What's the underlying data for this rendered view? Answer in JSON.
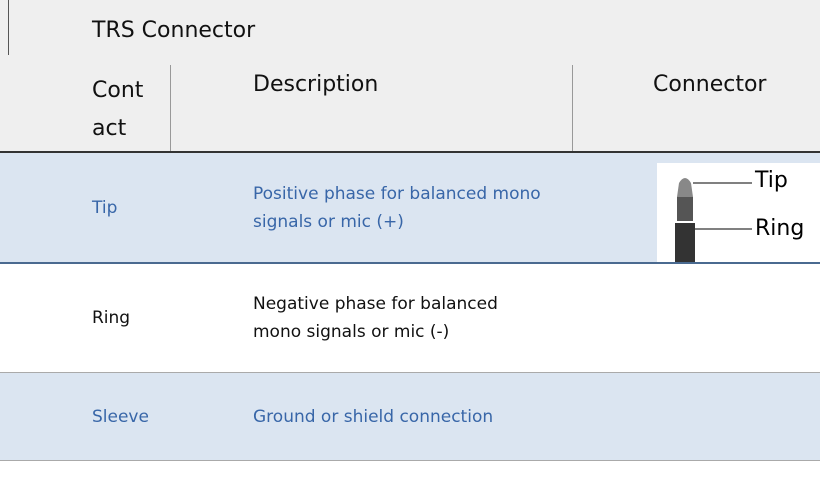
{
  "table": {
    "title": "TRS Connector",
    "headers": [
      "Contact",
      "Description",
      "Connector"
    ],
    "rows": [
      [
        "Tip",
        "Positive phase for balanced mono signals or mic (+)"
      ],
      [
        "Ring",
        "Negative phase for balanced mono signals or mic (-)"
      ],
      [
        "Sleeve",
        "Ground or shield connection"
      ]
    ],
    "connector_labels": [
      "Tip",
      "Ring"
    ]
  }
}
